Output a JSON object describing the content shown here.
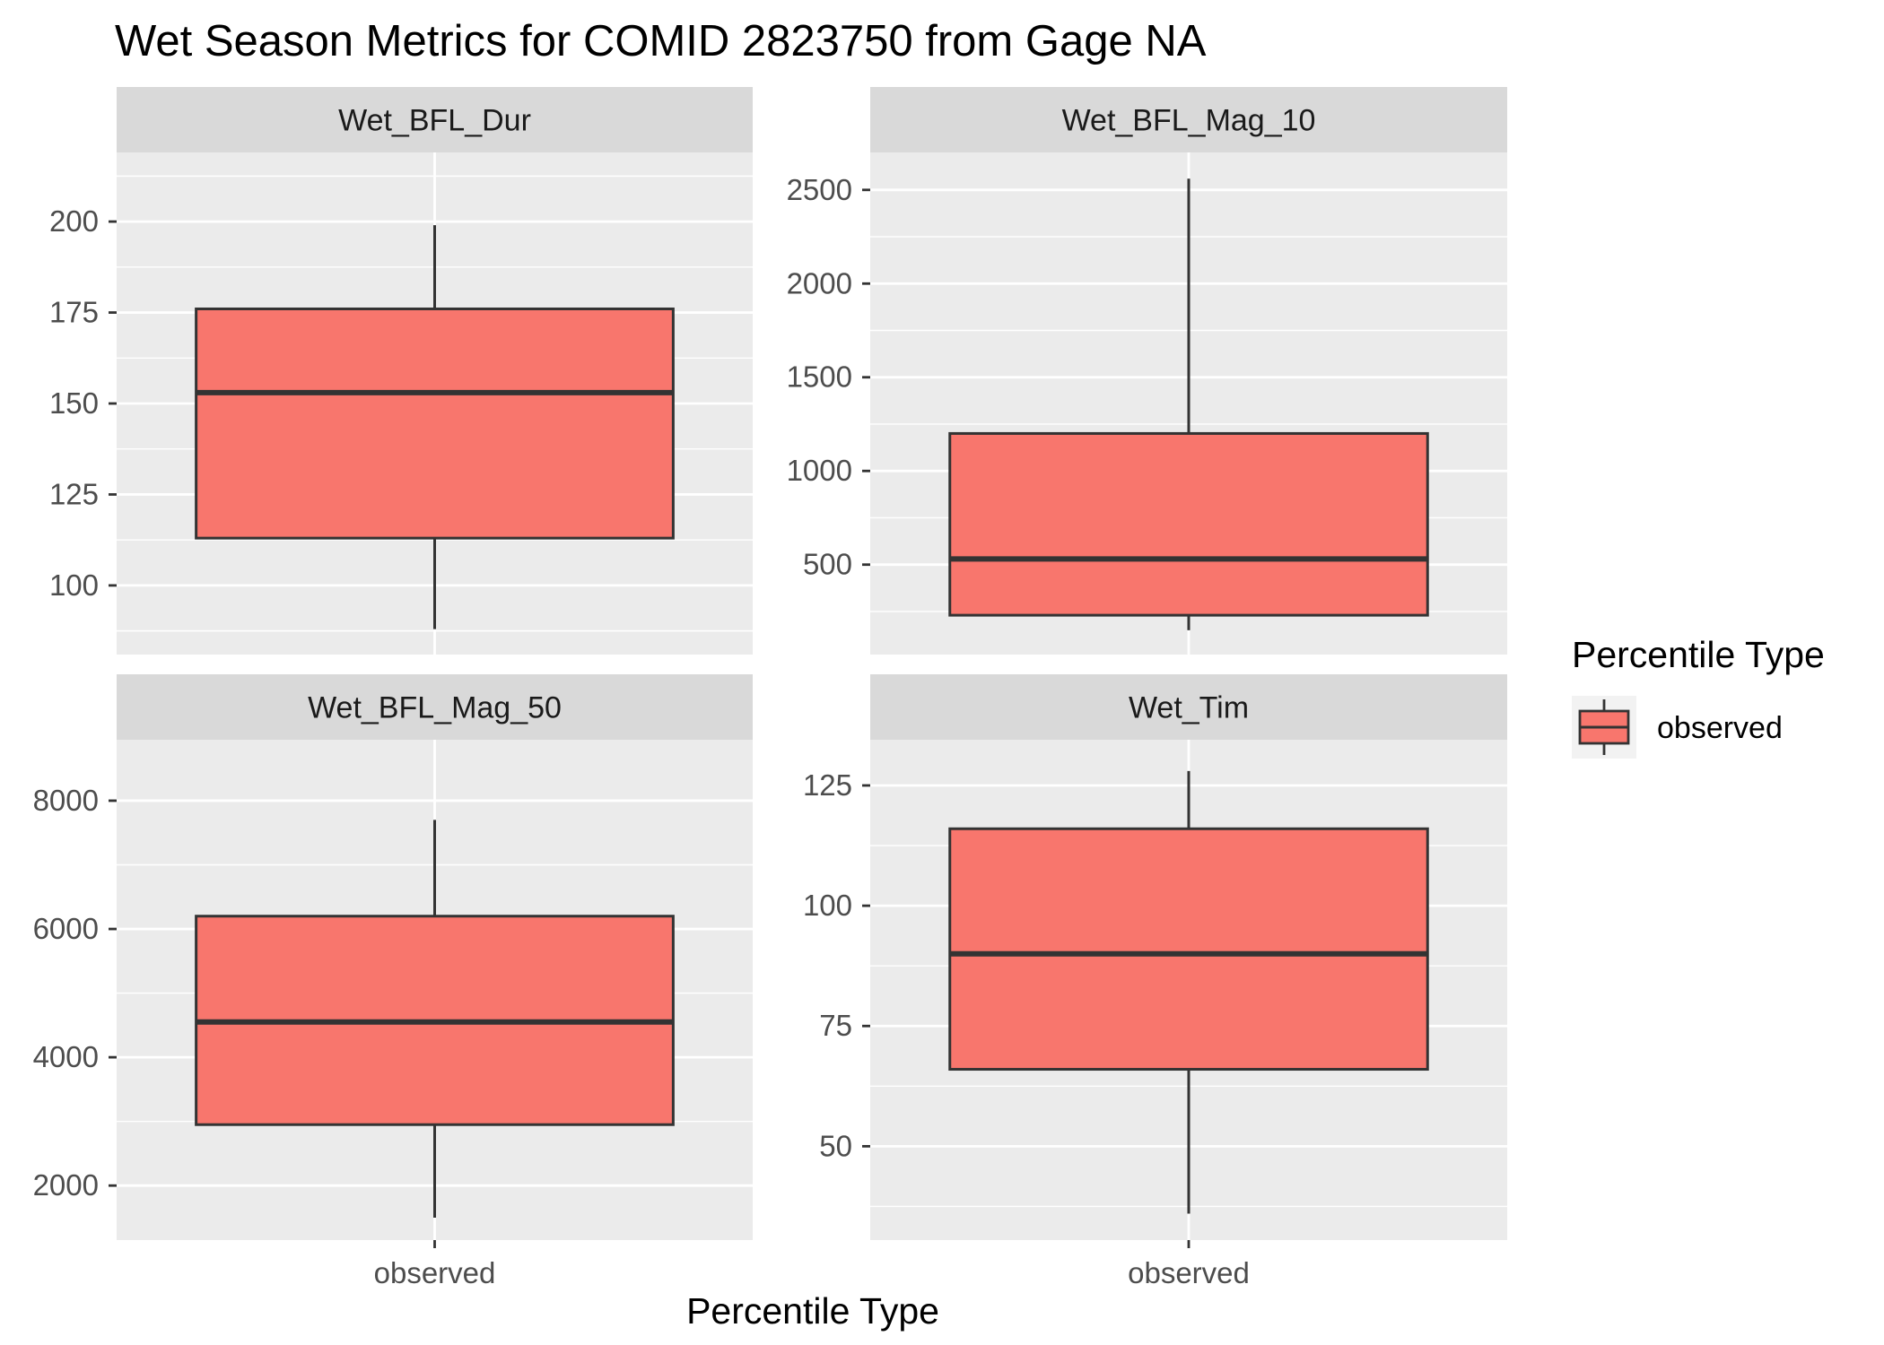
{
  "chart_data": {
    "type": "boxplot",
    "title": "Wet Season Metrics for COMID 2823750 from Gage NA",
    "xlabel": "Percentile Type",
    "ylabel": "",
    "categories": [
      "observed"
    ],
    "colors": {
      "fill": "#F8766D",
      "outline": "#333333",
      "panel": "#EBEBEB",
      "strip": "#D9D9D9",
      "grid": "#FFFFFF"
    },
    "legend": {
      "title": "Percentile Type",
      "entries": [
        "observed"
      ],
      "position": "right"
    },
    "facets": [
      {
        "label": "Wet_BFL_Dur",
        "ylim": [
          81,
          219
        ],
        "ticks": [
          100,
          125,
          150,
          175,
          200
        ],
        "boxes": [
          {
            "category": "observed",
            "min": 88,
            "q1": 113,
            "median": 153,
            "q3": 176,
            "max": 199
          }
        ]
      },
      {
        "label": "Wet_BFL_Mag_10",
        "ylim": [
          20,
          2700
        ],
        "ticks": [
          500,
          1000,
          1500,
          2000,
          2500
        ],
        "boxes": [
          {
            "category": "observed",
            "min": 150,
            "q1": 230,
            "median": 530,
            "q3": 1200,
            "max": 2560
          }
        ]
      },
      {
        "label": "Wet_BFL_Mag_50",
        "ylim": [
          1150,
          8950
        ],
        "ticks": [
          2000,
          4000,
          6000,
          8000
        ],
        "boxes": [
          {
            "category": "observed",
            "min": 1500,
            "q1": 2950,
            "median": 4550,
            "q3": 6200,
            "max": 7700
          }
        ]
      },
      {
        "label": "Wet_Tim",
        "ylim": [
          30.5,
          134.5
        ],
        "ticks": [
          50,
          75,
          100,
          125
        ],
        "boxes": [
          {
            "category": "observed",
            "min": 36,
            "q1": 66,
            "median": 90,
            "q3": 116,
            "max": 128
          }
        ]
      }
    ]
  }
}
